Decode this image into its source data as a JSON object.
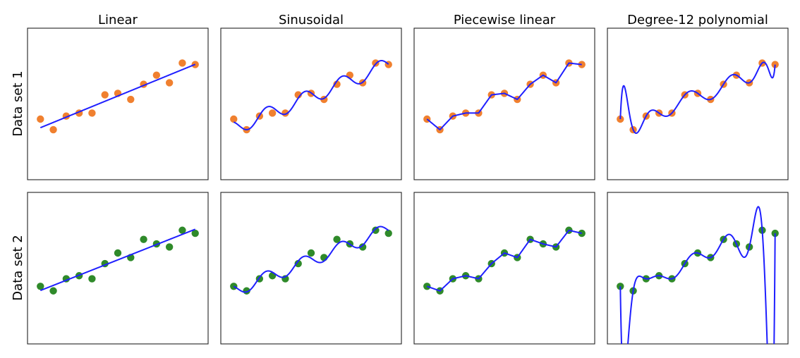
{
  "chart_data": [
    {
      "type": "scatter",
      "layout": "grid 2 rows x 4 columns",
      "column_titles": [
        "Linear",
        "Sinusoidal",
        "Piecewise linear",
        "Degree-12 polynomial"
      ],
      "row_labels": [
        "Data set 1",
        "Data set 2"
      ],
      "axes_ticks": "none",
      "grid": false,
      "xlim": [
        -1,
        13
      ],
      "ylim": [
        0,
        1
      ],
      "fit_line_color": "#1f1fff",
      "datasets": [
        {
          "label": "Data set 1",
          "color": "#f0802f",
          "x": [
            0,
            1,
            2,
            3,
            4,
            5,
            6,
            7,
            8,
            9,
            10,
            11,
            12
          ],
          "y": [
            0.4,
            0.33,
            0.42,
            0.44,
            0.44,
            0.56,
            0.57,
            0.53,
            0.63,
            0.69,
            0.64,
            0.77,
            0.76
          ]
        },
        {
          "label": "Data set 2",
          "color": "#2f8a2a",
          "x": [
            0,
            1,
            2,
            3,
            4,
            5,
            6,
            7,
            8,
            9,
            10,
            11,
            12
          ],
          "y": [
            0.38,
            0.35,
            0.43,
            0.45,
            0.43,
            0.53,
            0.6,
            0.57,
            0.69,
            0.66,
            0.64,
            0.75,
            0.73
          ]
        }
      ],
      "fits": [
        "linear",
        "sinusoidal",
        "piecewise-linear",
        "polynomial-degree-12"
      ]
    }
  ]
}
